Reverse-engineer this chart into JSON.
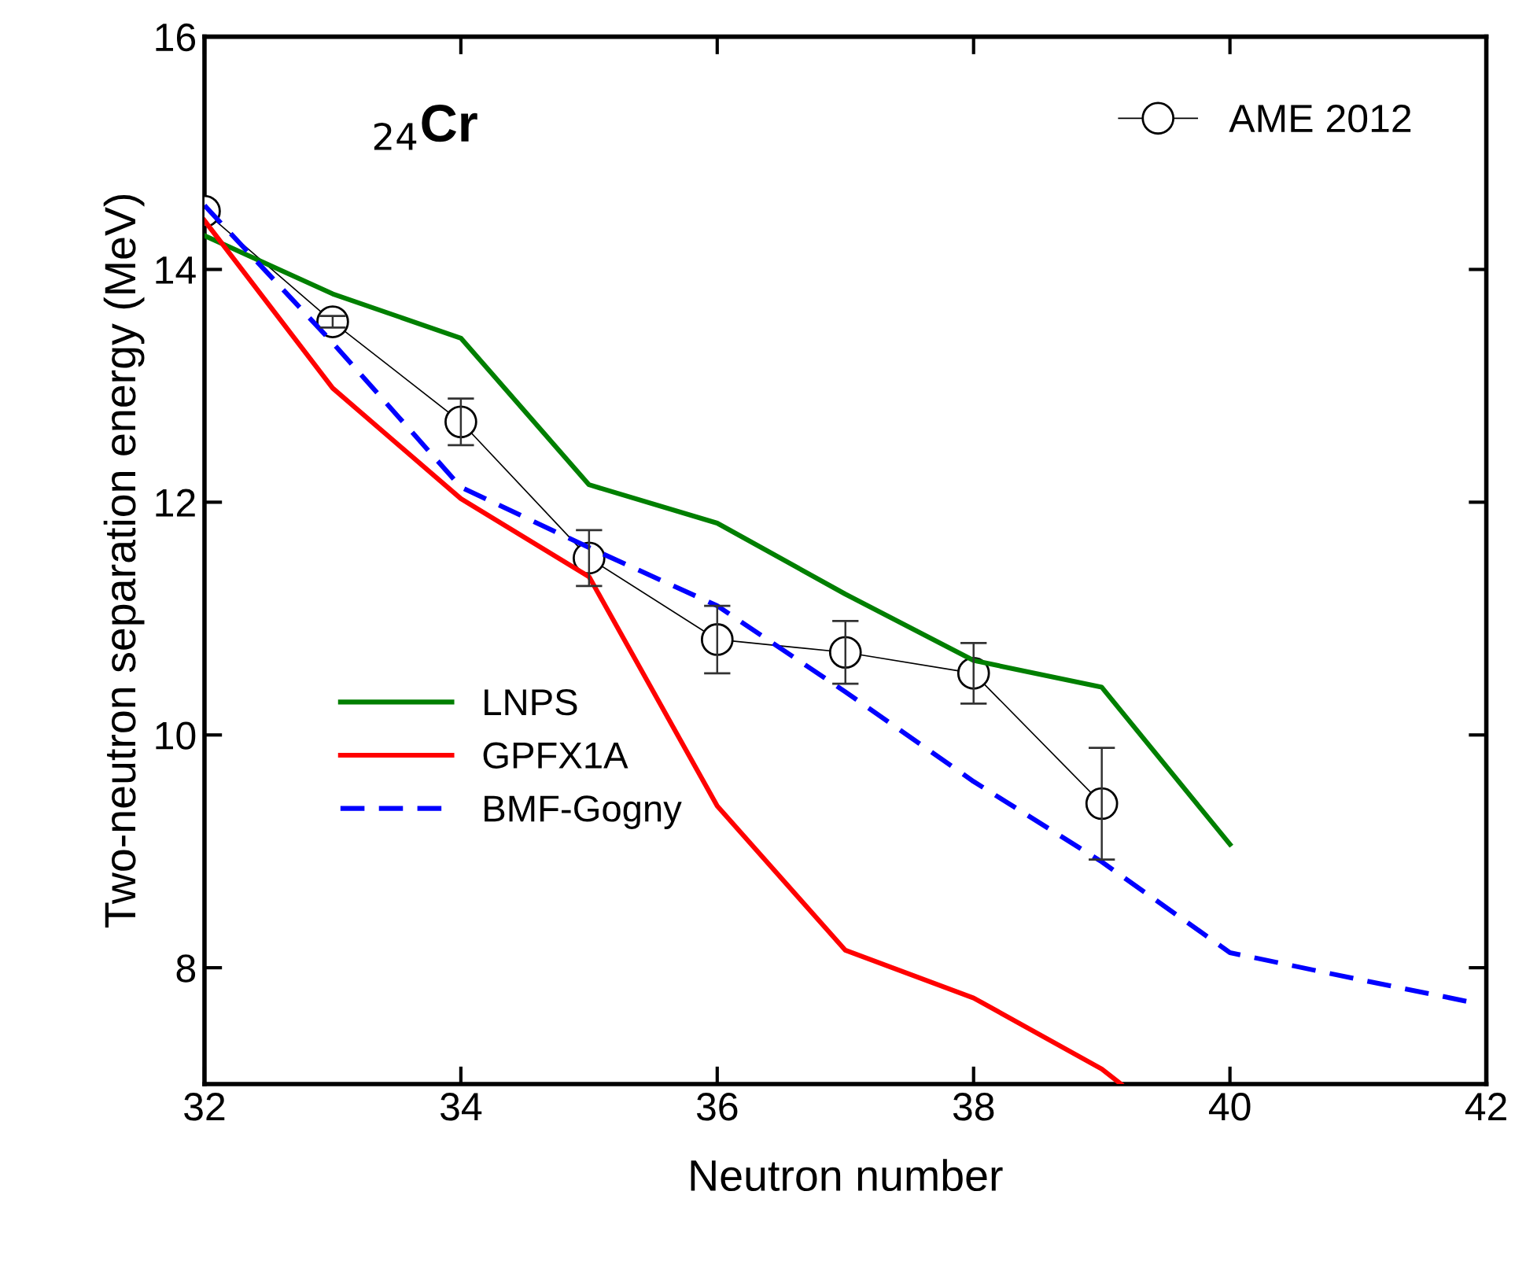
{
  "chart_data": {
    "type": "line",
    "xlabel": "Neutron number",
    "ylabel": "Two-neutron separation energy (MeV)",
    "xlim": [
      32,
      42
    ],
    "xticks": [
      32,
      34,
      36,
      38,
      40,
      42
    ],
    "ylim": [
      7,
      16
    ],
    "yticks": [
      8,
      10,
      12,
      14,
      16
    ],
    "grid": false,
    "legend": "top right",
    "annotations": [
      "$_{24}$Cr"
    ],
    "series": [
      {
        "name": "AME 2012",
        "color": "#000000",
        "marker": "circle",
        "x": [
          32,
          33,
          34,
          35,
          36,
          37,
          38,
          39
        ],
        "values": [
          14.5,
          13.55,
          12.69,
          11.52,
          10.82,
          10.71,
          10.53,
          9.41
        ],
        "errors": [
          null,
          0.05,
          0.2,
          0.24,
          0.29,
          0.27,
          0.26,
          0.48
        ]
      },
      {
        "name": "LNPS",
        "color": "#007f00",
        "x": [
          32,
          33,
          34,
          35,
          36,
          37,
          38,
          39,
          40
        ],
        "values": [
          14.29,
          13.79,
          13.41,
          12.15,
          11.82,
          11.21,
          10.64,
          10.41,
          9.06
        ]
      },
      {
        "name": "GPFX1A",
        "color": "#ff0000",
        "x": [
          32,
          33,
          34,
          35,
          36,
          37,
          38,
          39,
          39.15
        ],
        "values": [
          14.42,
          12.98,
          12.03,
          11.36,
          9.39,
          8.15,
          7.74,
          7.13,
          7.0
        ]
      },
      {
        "name": "BMF-Gogny",
        "color": "#0000ff",
        "line_style": "dashed",
        "x": [
          32,
          33,
          34,
          35,
          36,
          37,
          38,
          39,
          40,
          41,
          41.9
        ],
        "values": [
          14.55,
          13.37,
          12.13,
          11.61,
          11.11,
          10.37,
          9.6,
          8.91,
          8.13,
          7.9,
          7.7
        ]
      }
    ]
  }
}
